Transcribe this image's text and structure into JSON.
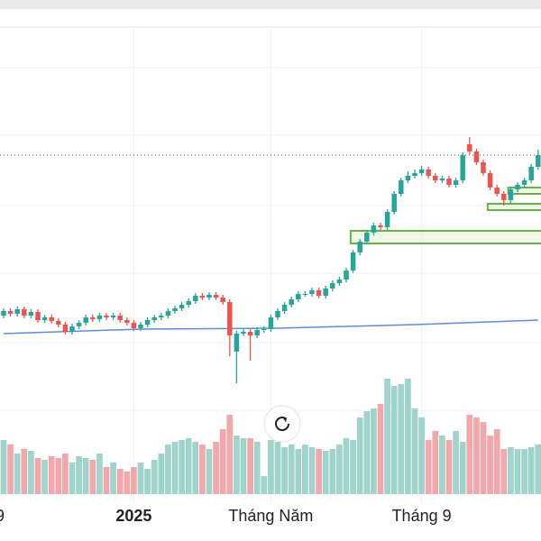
{
  "chart_data": {
    "type": "candlestick",
    "ylim": [
      0,
      600
    ],
    "up_color": "#26a69a",
    "down_color": "#ef5350",
    "up_volume_color": "#9fd3cb",
    "down_volume_color": "#f2a8ab",
    "open": [
      250,
      255,
      252,
      257,
      250,
      254,
      245,
      248,
      244,
      240,
      232,
      238,
      242,
      248,
      246,
      250,
      248,
      250,
      245,
      242,
      236,
      240,
      245,
      248,
      250,
      255,
      258,
      262,
      266,
      272,
      270,
      273,
      270,
      265,
      210,
      230,
      232,
      228,
      234,
      235,
      248,
      255,
      262,
      268,
      274,
      274,
      278,
      272,
      280,
      286,
      290,
      300,
      320,
      332,
      342,
      350,
      348,
      365,
      385,
      400,
      405,
      408,
      412,
      405,
      400,
      402,
      395,
      400,
      440,
      432,
      420,
      408,
      392,
      385,
      378,
      390,
      395,
      400,
      415
    ],
    "high": [
      258,
      258,
      260,
      260,
      257,
      257,
      251,
      251,
      247,
      243,
      241,
      245,
      251,
      251,
      253,
      253,
      253,
      253,
      248,
      245,
      243,
      248,
      251,
      253,
      258,
      261,
      265,
      269,
      275,
      275,
      276,
      276,
      273,
      268,
      233,
      235,
      235,
      237,
      238,
      251,
      258,
      265,
      271,
      277,
      277,
      281,
      281,
      283,
      289,
      293,
      303,
      323,
      335,
      345,
      353,
      353,
      368,
      388,
      403,
      410,
      412,
      416,
      415,
      408,
      405,
      405,
      403,
      431,
      448,
      435,
      423,
      411,
      395,
      388,
      393,
      398,
      403,
      418,
      434
    ],
    "low": [
      247,
      249,
      249,
      247,
      247,
      242,
      242,
      241,
      237,
      229,
      229,
      235,
      239,
      243,
      243,
      245,
      245,
      242,
      239,
      233,
      233,
      237,
      242,
      245,
      247,
      252,
      255,
      259,
      263,
      267,
      267,
      267,
      262,
      205,
      175,
      227,
      200,
      225,
      231,
      232,
      245,
      252,
      259,
      265,
      271,
      271,
      269,
      269,
      277,
      283,
      287,
      297,
      317,
      329,
      339,
      345,
      345,
      362,
      382,
      397,
      402,
      405,
      402,
      397,
      397,
      392,
      392,
      397,
      429,
      417,
      405,
      389,
      382,
      372,
      375,
      387,
      392,
      397,
      412
    ],
    "close": [
      255,
      252,
      257,
      250,
      254,
      245,
      248,
      244,
      240,
      232,
      238,
      242,
      248,
      246,
      250,
      248,
      250,
      245,
      242,
      236,
      240,
      245,
      248,
      250,
      255,
      258,
      262,
      266,
      272,
      270,
      273,
      270,
      265,
      228,
      230,
      232,
      228,
      234,
      235,
      248,
      255,
      262,
      268,
      274,
      274,
      278,
      272,
      280,
      286,
      290,
      300,
      320,
      332,
      342,
      350,
      348,
      365,
      385,
      400,
      405,
      408,
      412,
      405,
      400,
      402,
      395,
      400,
      428,
      432,
      420,
      408,
      392,
      385,
      378,
      390,
      395,
      400,
      415,
      428
    ],
    "volume": [
      60,
      55,
      45,
      50,
      48,
      40,
      38,
      42,
      40,
      45,
      35,
      42,
      40,
      38,
      45,
      30,
      35,
      28,
      25,
      30,
      35,
      28,
      38,
      45,
      55,
      58,
      60,
      62,
      58,
      55,
      50,
      58,
      72,
      88,
      65,
      62,
      62,
      58,
      20,
      60,
      58,
      52,
      55,
      50,
      55,
      52,
      50,
      48,
      50,
      55,
      62,
      60,
      85,
      92,
      95,
      100,
      128,
      120,
      122,
      128,
      95,
      85,
      60,
      70,
      65,
      60,
      70,
      58,
      88,
      85,
      80,
      65,
      72,
      50,
      52,
      50,
      50,
      52,
      55
    ],
    "moving_average": {
      "x": [
        0,
        20,
        40,
        60,
        78
      ],
      "values": [
        230,
        235,
        236,
        240,
        245
      ],
      "color": "#5b8fd6"
    },
    "last_price": 428,
    "zones": [
      {
        "start": 51,
        "low": 330,
        "high": 344
      },
      {
        "start": 71,
        "low": 367,
        "high": 374
      },
      {
        "start": 74,
        "low": 385,
        "high": 392
      }
    ],
    "zone_color": "#6ab04c",
    "x_labels": [
      {
        "index": 0,
        "label": "9"
      },
      {
        "index": 19,
        "label": "2025"
      },
      {
        "index": 39,
        "label": "Tháng Năm"
      },
      {
        "index": 61,
        "label": "Tháng 9"
      }
    ]
  }
}
